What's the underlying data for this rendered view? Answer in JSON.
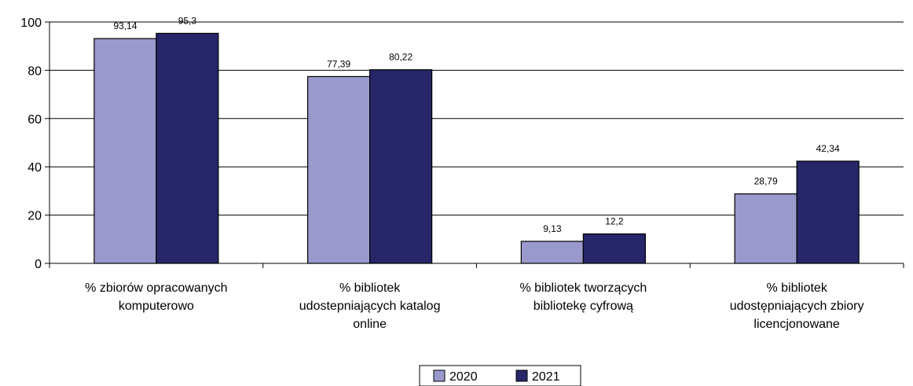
{
  "chart_data": {
    "type": "bar",
    "categories": [
      [
        "% zbiorów opracowanych",
        "komputerowo"
      ],
      [
        "% bibliotek",
        "udostepniających katalog",
        "online"
      ],
      [
        "% bibliotek tworzących",
        "bibliotekę cyfrową"
      ],
      [
        "% bibliotek",
        "udostępniających zbiory",
        "licencjonowane"
      ]
    ],
    "series": [
      {
        "name": "2020",
        "values": [
          93.14,
          77.39,
          9.13,
          28.79
        ],
        "labels": [
          "93,14",
          "77,39",
          "9,13",
          "28,79"
        ],
        "color": "#9999cc"
      },
      {
        "name": "2021",
        "values": [
          95.3,
          80.22,
          12.2,
          42.34
        ],
        "labels": [
          "95,3",
          "80,22",
          "12,2",
          "42,34"
        ],
        "color": "#262669"
      }
    ],
    "ylim": [
      0,
      100
    ],
    "yticks": [
      0,
      20,
      40,
      60,
      80,
      100
    ],
    "grid": true,
    "legend_position": "bottom"
  }
}
